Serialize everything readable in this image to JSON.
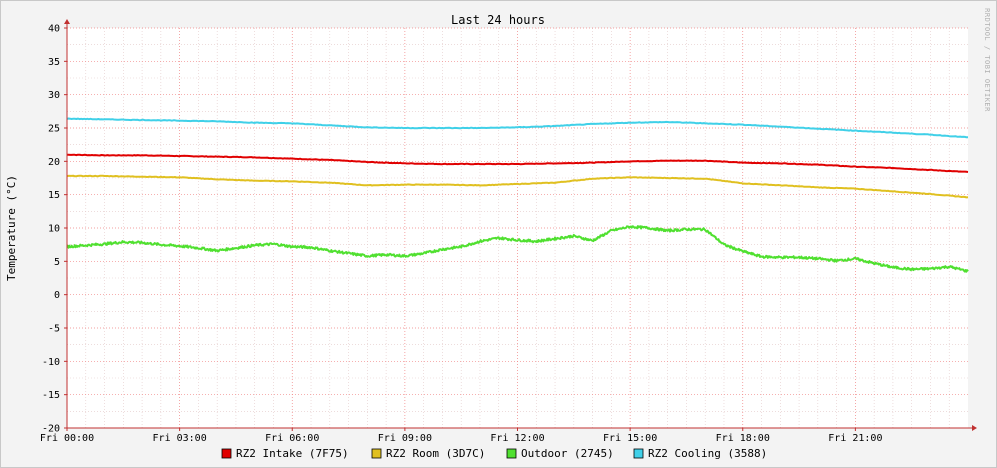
{
  "chart_data": {
    "type": "line",
    "title": "Last 24 hours",
    "ylabel": "Temperature (°C)",
    "watermark": "RRDTOOL / TOBI OETIKER",
    "ylim": [
      -20,
      40
    ],
    "y_ticks": [
      40,
      35,
      30,
      25,
      20,
      15,
      10,
      5,
      0,
      -5,
      -10,
      -15,
      -20
    ],
    "x_range_hours": [
      0,
      24
    ],
    "x_tick_hours": [
      0,
      3,
      6,
      9,
      12,
      15,
      18,
      21
    ],
    "x_tick_labels": [
      "Fri 00:00",
      "Fri 03:00",
      "Fri 06:00",
      "Fri 09:00",
      "Fri 12:00",
      "Fri 15:00",
      "Fri 18:00",
      "Fri 21:00"
    ],
    "grid": true,
    "legend": "bottom",
    "series": [
      {
        "name": "RZ2 Intake (7F75)",
        "color": "#e00000",
        "x": [
          0,
          1,
          2,
          3,
          4,
          5,
          6,
          7,
          8,
          9,
          10,
          11,
          12,
          13,
          14,
          15,
          16,
          17,
          18,
          19,
          20,
          21,
          22,
          23,
          24
        ],
        "values": [
          21.0,
          20.9,
          20.9,
          20.8,
          20.7,
          20.6,
          20.4,
          20.2,
          19.9,
          19.7,
          19.6,
          19.6,
          19.6,
          19.7,
          19.8,
          20.0,
          20.1,
          20.1,
          19.8,
          19.7,
          19.5,
          19.2,
          19.0,
          18.7,
          18.4
        ]
      },
      {
        "name": "RZ2 Room (3D7C)",
        "color": "#e0c020",
        "x": [
          0,
          1,
          2,
          3,
          4,
          5,
          6,
          7,
          8,
          9,
          10,
          11,
          12,
          13,
          14,
          15,
          16,
          17,
          18,
          19,
          20,
          21,
          22,
          23,
          24
        ],
        "values": [
          17.8,
          17.8,
          17.7,
          17.6,
          17.3,
          17.1,
          17.0,
          16.8,
          16.4,
          16.5,
          16.5,
          16.4,
          16.6,
          16.8,
          17.4,
          17.6,
          17.5,
          17.4,
          16.7,
          16.4,
          16.1,
          15.9,
          15.5,
          15.1,
          14.6
        ]
      },
      {
        "name": "Outdoor (2745)",
        "color": "#50e030",
        "x": [
          0,
          0.5,
          1,
          1.5,
          2,
          2.5,
          3,
          3.5,
          4,
          4.5,
          5,
          5.5,
          6,
          6.5,
          7,
          7.5,
          8,
          8.5,
          9,
          9.5,
          10,
          10.5,
          11,
          11.5,
          12,
          12.5,
          13,
          13.5,
          14,
          14.5,
          15,
          15.5,
          16,
          16.5,
          17,
          17.5,
          18,
          18.5,
          19,
          19.5,
          20,
          20.5,
          21,
          21.5,
          22,
          22.5,
          23,
          23.5,
          24
        ],
        "values": [
          7.2,
          7.4,
          7.6,
          7.9,
          7.8,
          7.5,
          7.3,
          7.0,
          6.6,
          7.0,
          7.4,
          7.6,
          7.2,
          7.1,
          6.6,
          6.2,
          5.8,
          6.0,
          5.8,
          6.2,
          6.8,
          7.2,
          8.0,
          8.5,
          8.2,
          8.0,
          8.4,
          8.8,
          8.1,
          9.6,
          10.2,
          10.0,
          9.6,
          9.8,
          9.8,
          7.5,
          6.5,
          5.7,
          5.6,
          5.6,
          5.4,
          5.1,
          5.4,
          4.7,
          4.1,
          3.8,
          3.9,
          4.2,
          3.5
        ]
      },
      {
        "name": "RZ2 Cooling (3588)",
        "color": "#40d0e8",
        "x": [
          0,
          1,
          2,
          3,
          4,
          5,
          6,
          7,
          8,
          9,
          10,
          11,
          12,
          13,
          14,
          15,
          16,
          17,
          18,
          19,
          20,
          21,
          22,
          23,
          24
        ],
        "values": [
          26.4,
          26.3,
          26.2,
          26.1,
          26.0,
          25.8,
          25.7,
          25.4,
          25.1,
          25.0,
          25.0,
          25.0,
          25.1,
          25.3,
          25.6,
          25.8,
          25.9,
          25.7,
          25.5,
          25.2,
          24.9,
          24.6,
          24.3,
          24.0,
          23.6
        ]
      }
    ]
  }
}
